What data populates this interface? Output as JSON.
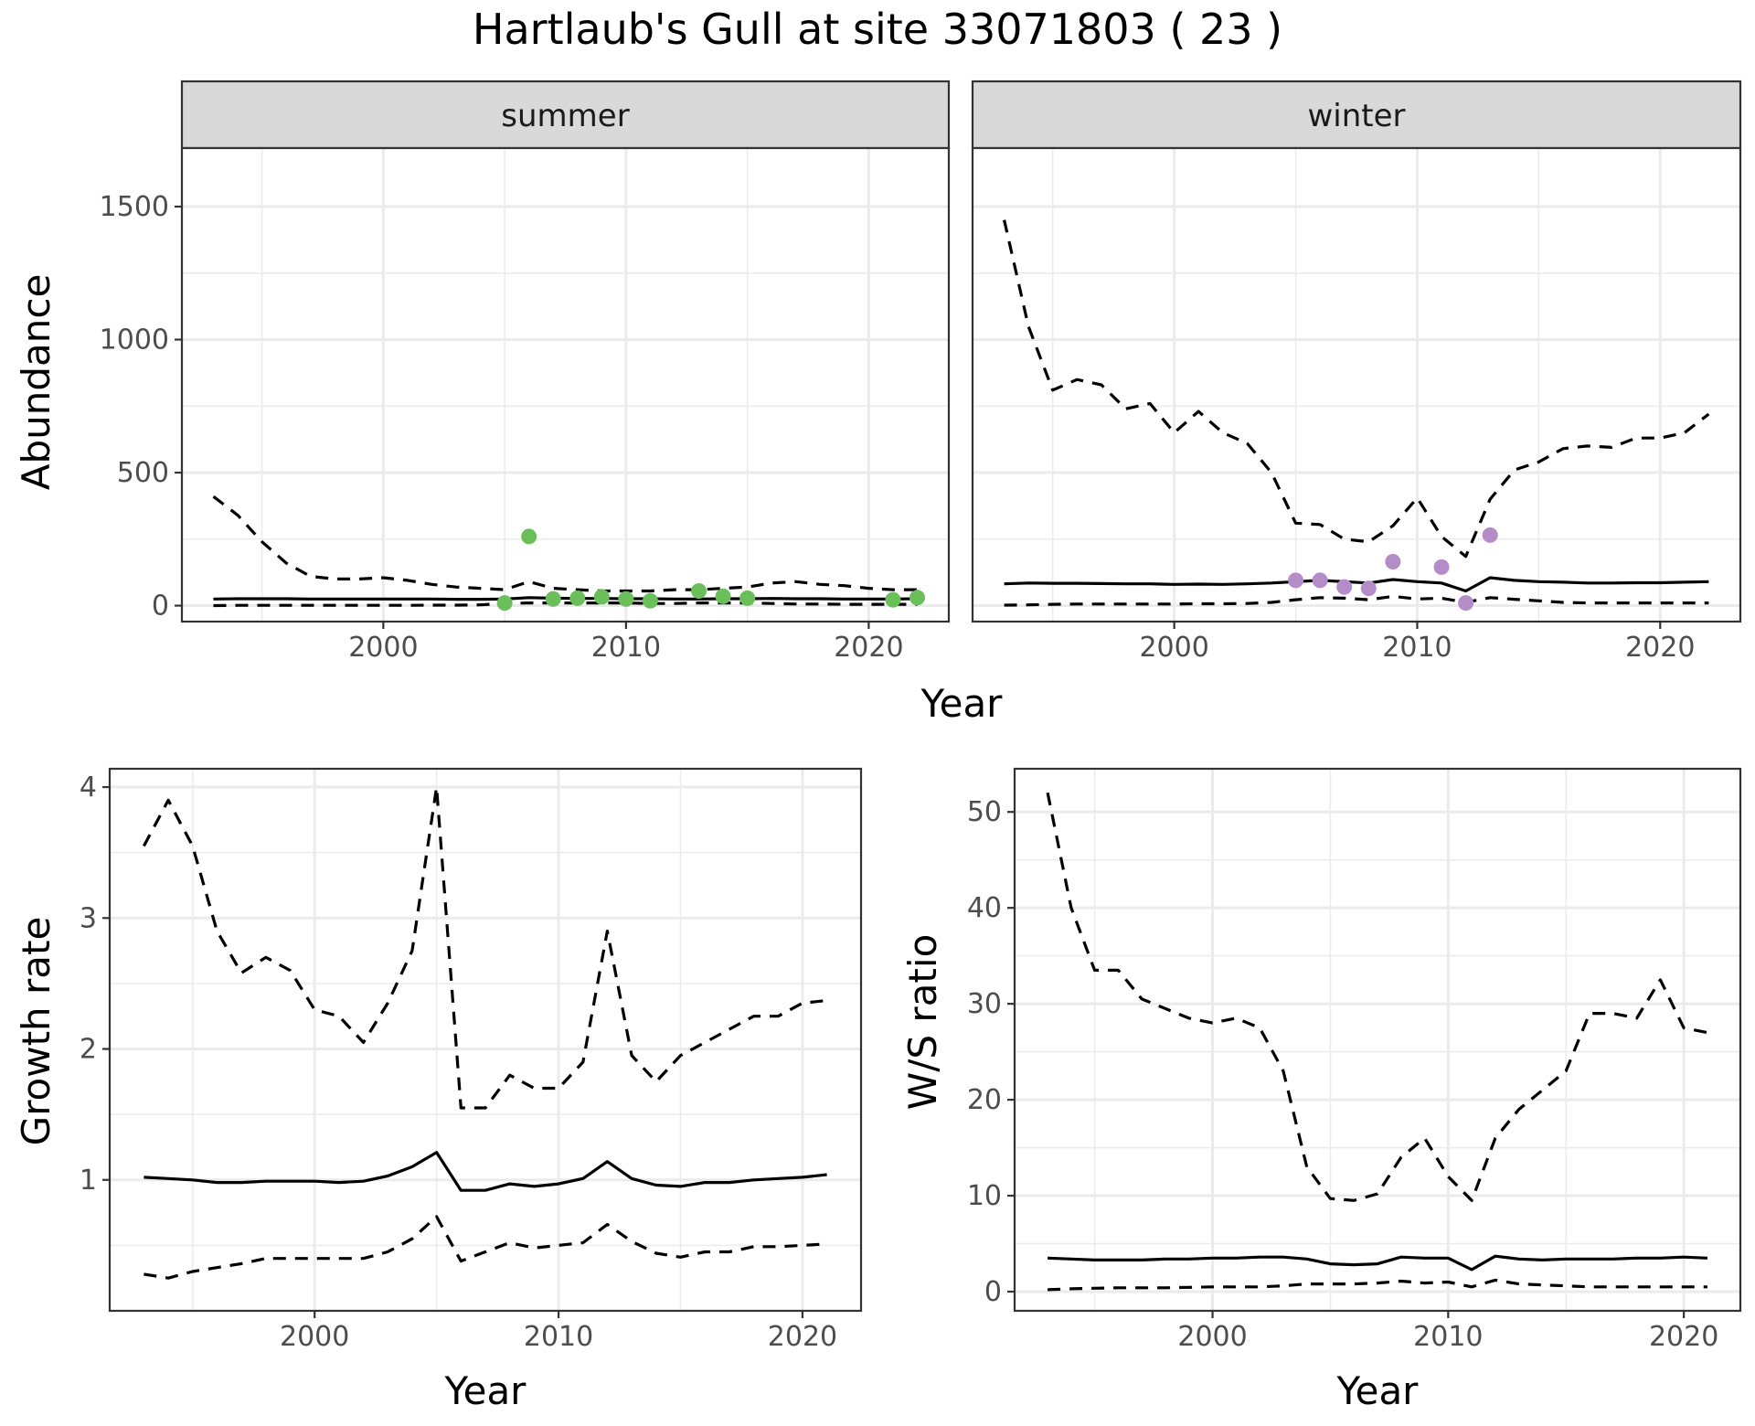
{
  "title": "Hartlaub's Gull at site 33071803 ( 23 )",
  "colors": {
    "summer_points": "#6abf5a",
    "winter_points": "#b48cc8",
    "strip_fill": "#d9d9d9"
  },
  "top": {
    "xlabel": "Year",
    "ylabel": "Abundance",
    "panels": [
      {
        "strip": "summer"
      },
      {
        "strip": "winter"
      }
    ]
  },
  "bottom_left": {
    "xlabel": "Year",
    "ylabel": "Growth rate"
  },
  "bottom_right": {
    "xlabel": "Year",
    "ylabel": "W/S ratio"
  },
  "chart_data": [
    {
      "type": "line",
      "facet": "summer",
      "xlabel": "Year",
      "ylabel": "Abundance",
      "xlim": [
        1991.7,
        2023.3
      ],
      "ylim": [
        -60,
        1720
      ],
      "xticks": [
        2000,
        2010,
        2020
      ],
      "yticks": [
        0,
        500,
        1000,
        1500
      ],
      "x": [
        1993,
        1994,
        1995,
        1996,
        1997,
        1998,
        1999,
        2000,
        2001,
        2002,
        2003,
        2004,
        2005,
        2006,
        2007,
        2008,
        2009,
        2010,
        2011,
        2012,
        2013,
        2014,
        2015,
        2016,
        2017,
        2018,
        2019,
        2020,
        2021,
        2022
      ],
      "series": [
        {
          "role": "upper",
          "values": [
            410,
            340,
            240,
            160,
            110,
            100,
            100,
            105,
            95,
            80,
            70,
            65,
            60,
            90,
            65,
            60,
            55,
            55,
            55,
            60,
            60,
            65,
            70,
            85,
            90,
            80,
            75,
            65,
            60,
            60
          ]
        },
        {
          "role": "mean",
          "values": [
            25,
            26,
            26,
            26,
            25,
            25,
            25,
            25,
            25,
            25,
            24,
            24,
            25,
            30,
            28,
            27,
            27,
            26,
            26,
            25,
            25,
            26,
            26,
            27,
            26,
            26,
            25,
            25,
            25,
            26
          ]
        },
        {
          "role": "lower",
          "values": [
            0,
            1,
            1,
            1,
            1,
            1,
            1,
            1,
            1,
            2,
            2,
            3,
            8,
            10,
            10,
            10,
            10,
            10,
            8,
            8,
            10,
            10,
            10,
            8,
            6,
            6,
            5,
            5,
            5,
            5
          ]
        }
      ],
      "points": {
        "x": [
          2005,
          2006,
          2007,
          2008,
          2009,
          2010,
          2011,
          2013,
          2014,
          2015,
          2021,
          2022
        ],
        "y": [
          10,
          260,
          25,
          28,
          33,
          25,
          18,
          55,
          35,
          28,
          22,
          30
        ]
      }
    },
    {
      "type": "line",
      "facet": "winter",
      "xlabel": "Year",
      "ylabel": "Abundance",
      "xlim": [
        1991.7,
        2023.3
      ],
      "ylim": [
        -60,
        1720
      ],
      "xticks": [
        2000,
        2010,
        2020
      ],
      "yticks": [
        0,
        500,
        1000,
        1500
      ],
      "x": [
        1993,
        1994,
        1995,
        1996,
        1997,
        1998,
        1999,
        2000,
        2001,
        2002,
        2003,
        2004,
        2005,
        2006,
        2007,
        2008,
        2009,
        2010,
        2011,
        2012,
        2013,
        2014,
        2015,
        2016,
        2017,
        2018,
        2019,
        2020,
        2021,
        2022
      ],
      "series": [
        {
          "role": "upper",
          "values": [
            1450,
            1050,
            810,
            850,
            830,
            740,
            760,
            650,
            730,
            650,
            610,
            500,
            310,
            305,
            250,
            240,
            300,
            405,
            260,
            185,
            400,
            510,
            540,
            590,
            600,
            595,
            630,
            630,
            650,
            720
          ]
        },
        {
          "role": "mean",
          "values": [
            82,
            85,
            84,
            84,
            83,
            82,
            82,
            80,
            81,
            80,
            82,
            85,
            90,
            95,
            90,
            85,
            98,
            90,
            85,
            55,
            105,
            95,
            90,
            88,
            85,
            85,
            86,
            86,
            88,
            90
          ]
        },
        {
          "role": "lower",
          "values": [
            2,
            3,
            5,
            6,
            6,
            6,
            6,
            6,
            7,
            7,
            8,
            12,
            22,
            30,
            28,
            22,
            35,
            25,
            28,
            12,
            30,
            24,
            18,
            12,
            10,
            10,
            10,
            10,
            10,
            10
          ]
        }
      ],
      "points": {
        "x": [
          2005,
          2006,
          2007,
          2008,
          2009,
          2011,
          2012,
          2013
        ],
        "y": [
          95,
          95,
          70,
          65,
          165,
          145,
          10,
          265
        ]
      }
    },
    {
      "type": "line",
      "xlabel": "Year",
      "ylabel": "Growth rate",
      "xlim": [
        1991.6,
        2022.4
      ],
      "ylim": [
        0.0,
        4.14
      ],
      "xticks": [
        2000,
        2010,
        2020
      ],
      "yticks": [
        1,
        2,
        3,
        4
      ],
      "x": [
        1993,
        1994,
        1995,
        1996,
        1997,
        1998,
        1999,
        2000,
        2001,
        2002,
        2003,
        2004,
        2005,
        2006,
        2007,
        2008,
        2009,
        2010,
        2011,
        2012,
        2013,
        2014,
        2015,
        2016,
        2017,
        2018,
        2019,
        2020,
        2021
      ],
      "series": [
        {
          "role": "upper",
          "values": [
            3.55,
            3.9,
            3.55,
            2.9,
            2.58,
            2.7,
            2.6,
            2.3,
            2.25,
            2.05,
            2.35,
            2.75,
            4.0,
            1.55,
            1.55,
            1.8,
            1.7,
            1.7,
            1.9,
            2.9,
            1.95,
            1.75,
            1.95,
            2.05,
            2.15,
            2.25,
            2.25,
            2.35,
            2.37
          ]
        },
        {
          "role": "mean",
          "values": [
            1.02,
            1.01,
            1.0,
            0.98,
            0.98,
            0.99,
            0.99,
            0.99,
            0.98,
            0.99,
            1.03,
            1.1,
            1.21,
            0.92,
            0.92,
            0.97,
            0.95,
            0.97,
            1.01,
            1.14,
            1.01,
            0.96,
            0.95,
            0.98,
            0.98,
            1.0,
            1.01,
            1.02,
            1.04
          ]
        },
        {
          "role": "lower",
          "values": [
            0.28,
            0.25,
            0.3,
            0.33,
            0.36,
            0.4,
            0.4,
            0.4,
            0.4,
            0.4,
            0.45,
            0.55,
            0.72,
            0.38,
            0.45,
            0.52,
            0.48,
            0.5,
            0.52,
            0.66,
            0.53,
            0.44,
            0.41,
            0.45,
            0.45,
            0.49,
            0.49,
            0.5,
            0.51
          ]
        }
      ]
    },
    {
      "type": "line",
      "xlabel": "Year",
      "ylabel": "W/S ratio",
      "xlim": [
        1991.6,
        2022.4
      ],
      "ylim": [
        -2.0,
        54.5
      ],
      "xticks": [
        2000,
        2010,
        2020
      ],
      "yticks": [
        0,
        10,
        20,
        30,
        40,
        50
      ],
      "x": [
        1993,
        1994,
        1995,
        1996,
        1997,
        1998,
        1999,
        2000,
        2001,
        2002,
        2003,
        2004,
        2005,
        2006,
        2007,
        2008,
        2009,
        2010,
        2011,
        2012,
        2013,
        2014,
        2015,
        2016,
        2017,
        2018,
        2019,
        2020,
        2021
      ],
      "series": [
        {
          "role": "upper",
          "values": [
            52,
            40,
            33.5,
            33.5,
            30.5,
            29.5,
            28.5,
            28,
            28.5,
            27.5,
            23,
            13,
            9.7,
            9.5,
            10.2,
            14,
            16,
            12,
            9.5,
            16,
            19,
            21,
            23,
            29,
            29,
            28.5,
            32.5,
            27.5,
            27
          ]
        },
        {
          "role": "mean",
          "values": [
            3.5,
            3.4,
            3.3,
            3.3,
            3.3,
            3.4,
            3.4,
            3.5,
            3.5,
            3.6,
            3.6,
            3.4,
            2.9,
            2.8,
            2.9,
            3.6,
            3.5,
            3.5,
            2.3,
            3.7,
            3.4,
            3.3,
            3.4,
            3.4,
            3.4,
            3.5,
            3.5,
            3.6,
            3.5
          ]
        },
        {
          "role": "lower",
          "values": [
            0.2,
            0.3,
            0.35,
            0.4,
            0.4,
            0.4,
            0.45,
            0.5,
            0.5,
            0.5,
            0.6,
            0.8,
            0.8,
            0.8,
            0.9,
            1.1,
            0.9,
            1.0,
            0.5,
            1.2,
            0.8,
            0.7,
            0.6,
            0.5,
            0.5,
            0.5,
            0.5,
            0.5,
            0.5
          ]
        }
      ]
    }
  ]
}
